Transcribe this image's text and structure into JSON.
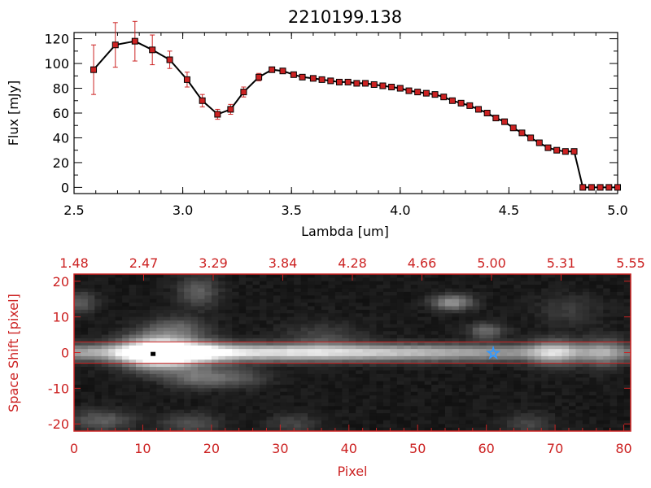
{
  "chart_data": [
    {
      "type": "line",
      "title": "2210199.138",
      "xlabel": "Lambda [um]",
      "ylabel": "Flux [mJy]",
      "xlim": [
        2.5,
        5.0
      ],
      "ylim": [
        -5,
        125
      ],
      "x_ticks": [
        "2.5",
        "3.0",
        "3.5",
        "4.0",
        "4.5",
        "5.0"
      ],
      "y_ticks": [
        "0",
        "20",
        "40",
        "60",
        "80",
        "100",
        "120"
      ],
      "grid": false,
      "colors": {
        "line": "#000000",
        "marker": "#cc2222",
        "error": "#cc2222"
      },
      "series": [
        {
          "x": [
            2.59,
            2.69,
            2.78,
            2.86,
            2.94,
            3.02,
            3.09,
            3.16,
            3.22,
            3.28,
            3.35,
            3.41,
            3.46,
            3.51,
            3.55,
            3.6,
            3.64,
            3.68,
            3.72,
            3.76,
            3.8,
            3.84,
            3.88,
            3.92,
            3.96,
            4.0,
            4.04,
            4.08,
            4.12,
            4.16,
            4.2,
            4.24,
            4.28,
            4.32,
            4.36,
            4.4,
            4.44,
            4.48,
            4.52,
            4.56,
            4.6,
            4.64,
            4.68,
            4.72,
            4.76,
            4.8,
            4.84,
            4.88,
            4.92,
            4.96,
            5.0
          ],
          "y": [
            95,
            115,
            118,
            111,
            103,
            87,
            70,
            59,
            63,
            77,
            89,
            95,
            94,
            91,
            89,
            88,
            87,
            86,
            85,
            85,
            84,
            84,
            83,
            82,
            81,
            80,
            78,
            77,
            76,
            75,
            73,
            70,
            68,
            66,
            63,
            60,
            56,
            53,
            48,
            44,
            40,
            36,
            32,
            30,
            29,
            29,
            0,
            0,
            0,
            0,
            0
          ],
          "error": [
            20,
            18,
            16,
            12,
            7,
            6,
            5,
            4,
            4,
            4,
            3,
            2,
            2,
            2,
            2,
            2,
            2,
            2,
            2,
            2,
            2,
            2,
            2,
            2,
            2,
            2,
            2,
            2,
            2,
            2,
            2,
            2,
            2,
            2,
            2,
            2,
            2,
            2,
            2,
            2,
            2,
            2,
            2,
            2,
            2,
            2,
            0,
            0,
            0,
            0,
            0
          ]
        }
      ]
    },
    {
      "type": "heatmap",
      "xlabel": "Pixel",
      "ylabel": "Space Shift [pixel]",
      "xlim": [
        0,
        81
      ],
      "ylim": [
        -22,
        22
      ],
      "x_ticks": [
        "0",
        "10",
        "20",
        "30",
        "40",
        "50",
        "60",
        "70",
        "80"
      ],
      "y_ticks": [
        "-20",
        "-10",
        "0",
        "10",
        "20"
      ],
      "top_axis_ticks": [
        "1.48",
        "2.47",
        "3.29",
        "3.84",
        "4.28",
        "4.66",
        "5.00",
        "5.31",
        "5.55"
      ],
      "colormap": "grayscale",
      "colors": {
        "axis": "#cc2222",
        "background": "#000000",
        "star": "#3399ff"
      },
      "extraction_lines_y": [
        3,
        -3
      ],
      "trace_center_y": 0,
      "peak_pixel": [
        11.5,
        -0.5
      ],
      "star_marker": [
        61,
        0
      ],
      "blobs": [
        {
          "x": 12,
          "y": 0,
          "sx": 3.5,
          "sy": 3.2,
          "amp": 1.0
        },
        {
          "x": 17,
          "y": 0,
          "sx": 4,
          "sy": 2.5,
          "amp": 0.5
        },
        {
          "x": 70,
          "y": 0,
          "sx": 2.5,
          "sy": 2.5,
          "amp": 0.45
        },
        {
          "x": 77,
          "y": 0,
          "sx": 2,
          "sy": 3,
          "amp": 0.3
        },
        {
          "x": 55,
          "y": 14,
          "sx": 2,
          "sy": 1.5,
          "amp": 0.45
        },
        {
          "x": 60,
          "y": 6,
          "sx": 1.8,
          "sy": 1.5,
          "amp": 0.3
        },
        {
          "x": 15,
          "y": 7,
          "sx": 3,
          "sy": 2,
          "amp": 0.25
        },
        {
          "x": 18,
          "y": 17,
          "sx": 2,
          "sy": 3,
          "amp": 0.25
        },
        {
          "x": 1,
          "y": 14,
          "sx": 1.5,
          "sy": 2,
          "amp": 0.25
        },
        {
          "x": 18,
          "y": -7,
          "sx": 3,
          "sy": 2,
          "amp": 0.3
        },
        {
          "x": 24,
          "y": -7,
          "sx": 3,
          "sy": 2,
          "amp": 0.2
        },
        {
          "x": 4,
          "y": -19,
          "sx": 3,
          "sy": 2,
          "amp": 0.25
        },
        {
          "x": 17,
          "y": -20,
          "sx": 3,
          "sy": 2,
          "amp": 0.2
        },
        {
          "x": 32,
          "y": -20,
          "sx": 2.5,
          "sy": 2,
          "amp": 0.15
        },
        {
          "x": 66,
          "y": -20,
          "sx": 2.5,
          "sy": 2,
          "amp": 0.15
        },
        {
          "x": 36,
          "y": 4,
          "sx": 4,
          "sy": 3,
          "amp": 0.15
        },
        {
          "x": 72,
          "y": 12,
          "sx": 3,
          "sy": 3,
          "amp": 0.12
        }
      ]
    }
  ]
}
